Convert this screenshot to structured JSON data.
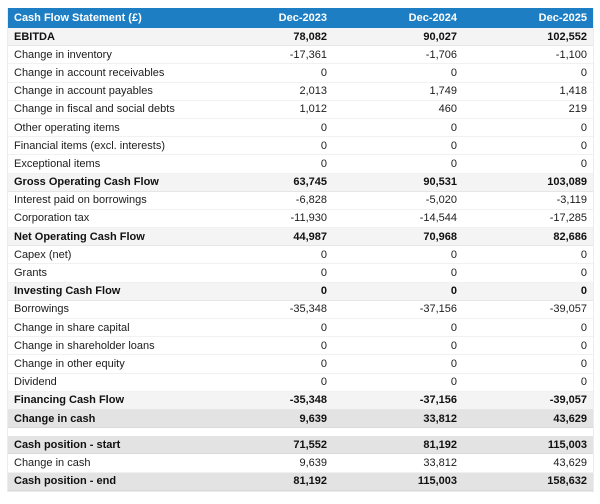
{
  "colors": {
    "header_bg": "#1e7ec4",
    "header_text": "#ffffff",
    "subtotal_row_bg": "#f4f4f4",
    "total_row_bg": "#e3e3e3",
    "body_text": "#1c1c1c"
  },
  "chart_data": {
    "type": "table",
    "title": "Cash Flow Statement (£)",
    "columns": [
      "Dec-2023",
      "Dec-2024",
      "Dec-2025"
    ],
    "rows": [
      {
        "label": "EBITDA",
        "values": [
          "78,082",
          "90,027",
          "102,552"
        ],
        "style": "subtotal"
      },
      {
        "label": "Change in inventory",
        "values": [
          "-17,361",
          "-1,706",
          "-1,100"
        ],
        "style": "normal"
      },
      {
        "label": "Change in account receivables",
        "values": [
          "0",
          "0",
          "0"
        ],
        "style": "normal"
      },
      {
        "label": "Change in account payables",
        "values": [
          "2,013",
          "1,749",
          "1,418"
        ],
        "style": "normal"
      },
      {
        "label": "Change in fiscal and social debts",
        "values": [
          "1,012",
          "460",
          "219"
        ],
        "style": "normal"
      },
      {
        "label": "Other operating items",
        "values": [
          "0",
          "0",
          "0"
        ],
        "style": "normal"
      },
      {
        "label": "Financial items (excl. interests)",
        "values": [
          "0",
          "0",
          "0"
        ],
        "style": "normal"
      },
      {
        "label": "Exceptional items",
        "values": [
          "0",
          "0",
          "0"
        ],
        "style": "normal"
      },
      {
        "label": "Gross Operating Cash Flow",
        "values": [
          "63,745",
          "90,531",
          "103,089"
        ],
        "style": "subtotal"
      },
      {
        "label": "Interest paid on borrowings",
        "values": [
          "-6,828",
          "-5,020",
          "-3,119"
        ],
        "style": "normal"
      },
      {
        "label": "Corporation tax",
        "values": [
          "-11,930",
          "-14,544",
          "-17,285"
        ],
        "style": "normal"
      },
      {
        "label": "Net Operating Cash Flow",
        "values": [
          "44,987",
          "70,968",
          "82,686"
        ],
        "style": "subtotal"
      },
      {
        "label": "Capex (net)",
        "values": [
          "0",
          "0",
          "0"
        ],
        "style": "normal"
      },
      {
        "label": "Grants",
        "values": [
          "0",
          "0",
          "0"
        ],
        "style": "normal"
      },
      {
        "label": "Investing Cash Flow",
        "values": [
          "0",
          "0",
          "0"
        ],
        "style": "subtotal"
      },
      {
        "label": "Borrowings",
        "values": [
          "-35,348",
          "-37,156",
          "-39,057"
        ],
        "style": "normal"
      },
      {
        "label": "Change in share capital",
        "values": [
          "0",
          "0",
          "0"
        ],
        "style": "normal"
      },
      {
        "label": "Change in shareholder loans",
        "values": [
          "0",
          "0",
          "0"
        ],
        "style": "normal"
      },
      {
        "label": "Change in other equity",
        "values": [
          "0",
          "0",
          "0"
        ],
        "style": "normal"
      },
      {
        "label": "Dividend",
        "values": [
          "0",
          "0",
          "0"
        ],
        "style": "normal"
      },
      {
        "label": "Financing Cash Flow",
        "values": [
          "-35,348",
          "-37,156",
          "-39,057"
        ],
        "style": "subtotal"
      },
      {
        "label": "Change in cash",
        "values": [
          "9,639",
          "33,812",
          "43,629"
        ],
        "style": "total"
      },
      {
        "label": "Cash position - start",
        "values": [
          "71,552",
          "81,192",
          "115,003"
        ],
        "style": "total",
        "gap_before": true
      },
      {
        "label": "Change in cash",
        "values": [
          "9,639",
          "33,812",
          "43,629"
        ],
        "style": "normal"
      },
      {
        "label": "Cash position - end",
        "values": [
          "81,192",
          "115,003",
          "158,632"
        ],
        "style": "total"
      }
    ]
  }
}
